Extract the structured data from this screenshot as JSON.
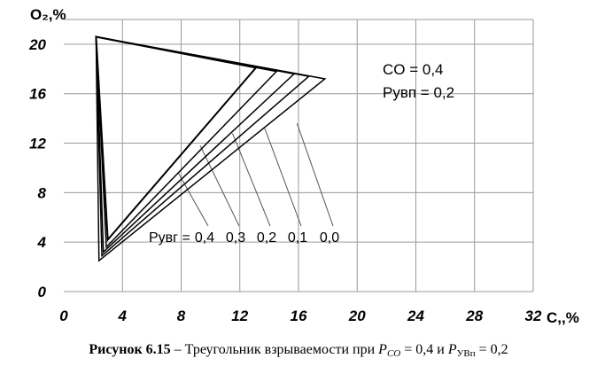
{
  "chart_data": {
    "type": "line",
    "ylabel": "O₂,%",
    "xlabel": "C,,%",
    "xlim": [
      0,
      32
    ],
    "ylim": [
      0,
      22
    ],
    "x_ticks": [
      0,
      4,
      8,
      12,
      16,
      20,
      24,
      28,
      32
    ],
    "x_tick_labels": [
      "0",
      "4",
      "8",
      "12",
      "16",
      "20",
      "24",
      "28",
      "32"
    ],
    "y_ticks": [
      0,
      4,
      8,
      12,
      16,
      20
    ],
    "y_tick_labels": [
      "0",
      "4",
      "8",
      "12",
      "16",
      "20"
    ],
    "grid": true,
    "top_vertex": [
      2.2,
      20.6
    ],
    "series": [
      {
        "label": "0,4",
        "upper": [
          13.1,
          18.1
        ],
        "lower": [
          3.0,
          4.2
        ]
      },
      {
        "label": "0,3",
        "upper": [
          14.5,
          17.8
        ],
        "lower": [
          2.9,
          3.6
        ]
      },
      {
        "label": "0,2",
        "upper": [
          15.7,
          17.6
        ],
        "lower": [
          2.7,
          3.2
        ]
      },
      {
        "label": "0,1",
        "upper": [
          16.7,
          17.4
        ],
        "lower": [
          2.6,
          2.9
        ]
      },
      {
        "label": "0,0",
        "upper": [
          17.8,
          17.2
        ],
        "lower": [
          2.4,
          2.5
        ]
      }
    ],
    "annotation": {
      "legend_prefix": "Pувг =",
      "param_line1": "CO  = 0,4",
      "param_line2": "Pувп = 0,2",
      "leader_start_points": [
        [
          7.8,
          9.6
        ],
        [
          9.3,
          11.8
        ],
        [
          11.5,
          12.8
        ],
        [
          13.7,
          13.2
        ],
        [
          15.9,
          13.6
        ]
      ]
    }
  },
  "caption": {
    "bold": "Рисунок 6.15",
    "text": " – Треугольник взрываемости при ",
    "p1": "P",
    "p1_sub": "CO",
    "eq1": " = 0,4 и ",
    "p2": "P",
    "p2_sub": "УВп",
    "eq2": " = 0,2"
  }
}
